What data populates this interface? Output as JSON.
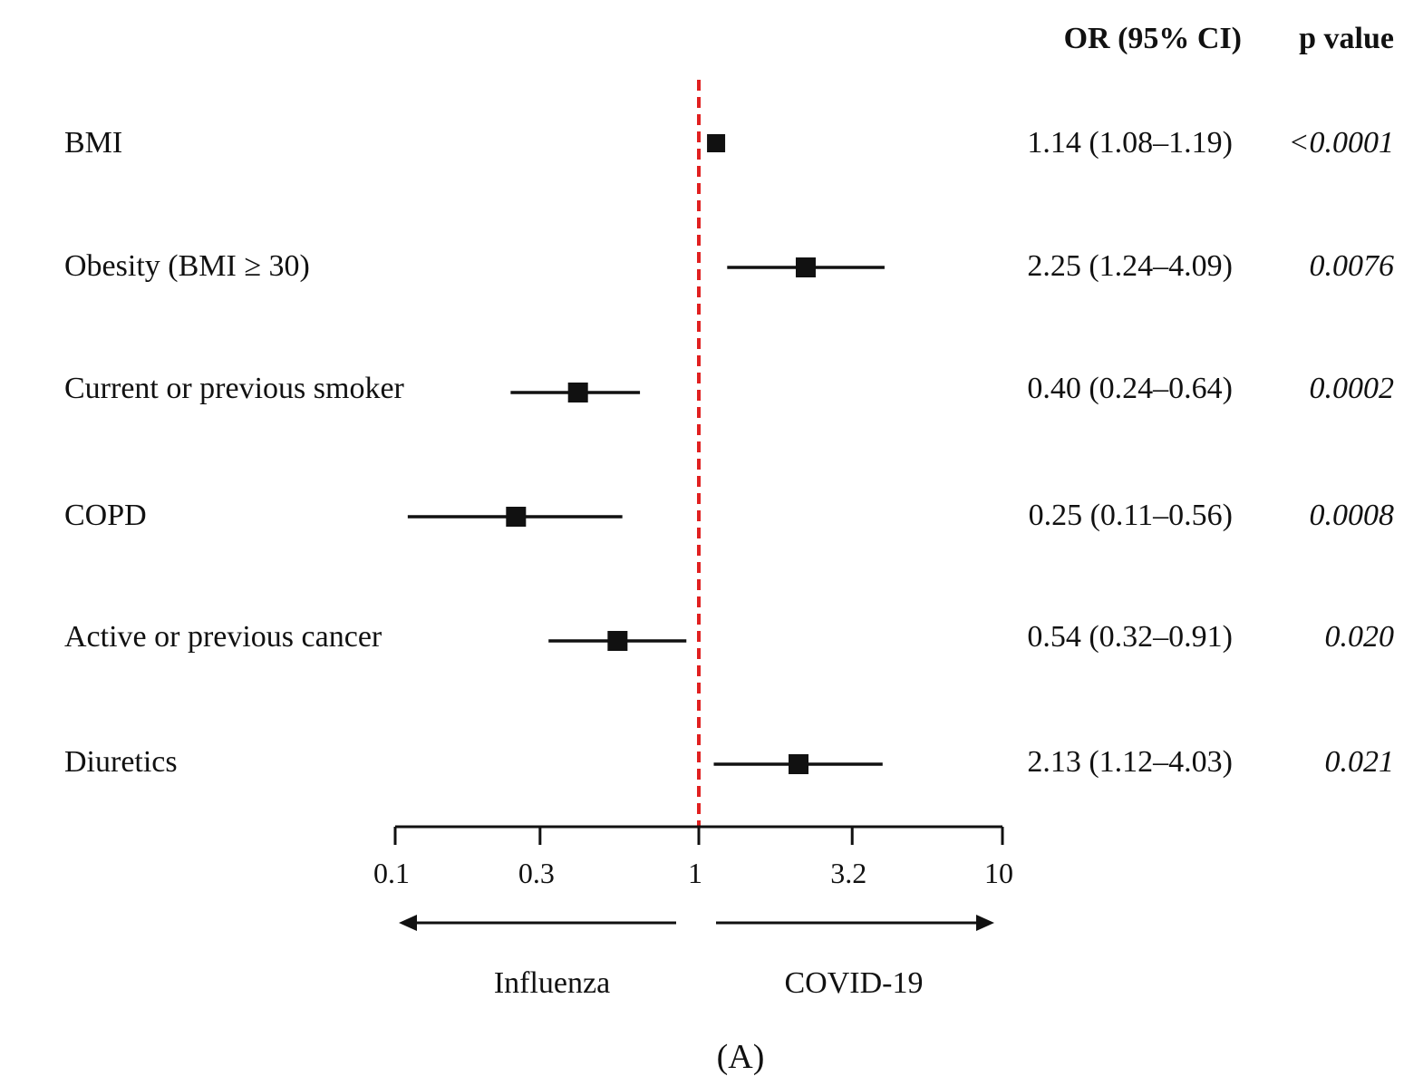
{
  "chart_data": {
    "type": "forest",
    "panel_label": "(A)",
    "headers": {
      "or": "OR (95% CI)",
      "p": "p value"
    },
    "xscale": "log10",
    "xlim": [
      0.1,
      10
    ],
    "ticks": [
      0.1,
      0.3,
      1,
      3.2,
      10
    ],
    "tick_labels": [
      "0.1",
      "0.3",
      "1",
      "3.2",
      "10"
    ],
    "reference_line": 1,
    "direction_labels": {
      "left": "Influenza",
      "right": "COVID-19"
    },
    "rows": [
      {
        "label": "BMI",
        "or": 1.14,
        "lo": 1.08,
        "hi": 1.19,
        "or_text": "1.14 (1.08–1.19)",
        "p_text": "<0.0001"
      },
      {
        "label": "Obesity (BMI ≥ 30)",
        "or": 2.25,
        "lo": 1.24,
        "hi": 4.09,
        "or_text": "2.25 (1.24–4.09)",
        "p_text": "0.0076"
      },
      {
        "label": "Current or previous smoker",
        "or": 0.4,
        "lo": 0.24,
        "hi": 0.64,
        "or_text": "0.40 (0.24–0.64)",
        "p_text": "0.0002"
      },
      {
        "label": "COPD",
        "or": 0.25,
        "lo": 0.11,
        "hi": 0.56,
        "or_text": "0.25 (0.11–0.56)",
        "p_text": "0.0008"
      },
      {
        "label": "Active or previous cancer",
        "or": 0.54,
        "lo": 0.32,
        "hi": 0.91,
        "or_text": "0.54 (0.32–0.91)",
        "p_text": "0.020"
      },
      {
        "label": "Diuretics",
        "or": 2.13,
        "lo": 1.12,
        "hi": 4.03,
        "or_text": "2.13 (1.12–4.03)",
        "p_text": "0.021"
      }
    ],
    "colors": {
      "marker": "#111111",
      "reference": "#e02020",
      "axis": "#111111"
    }
  }
}
